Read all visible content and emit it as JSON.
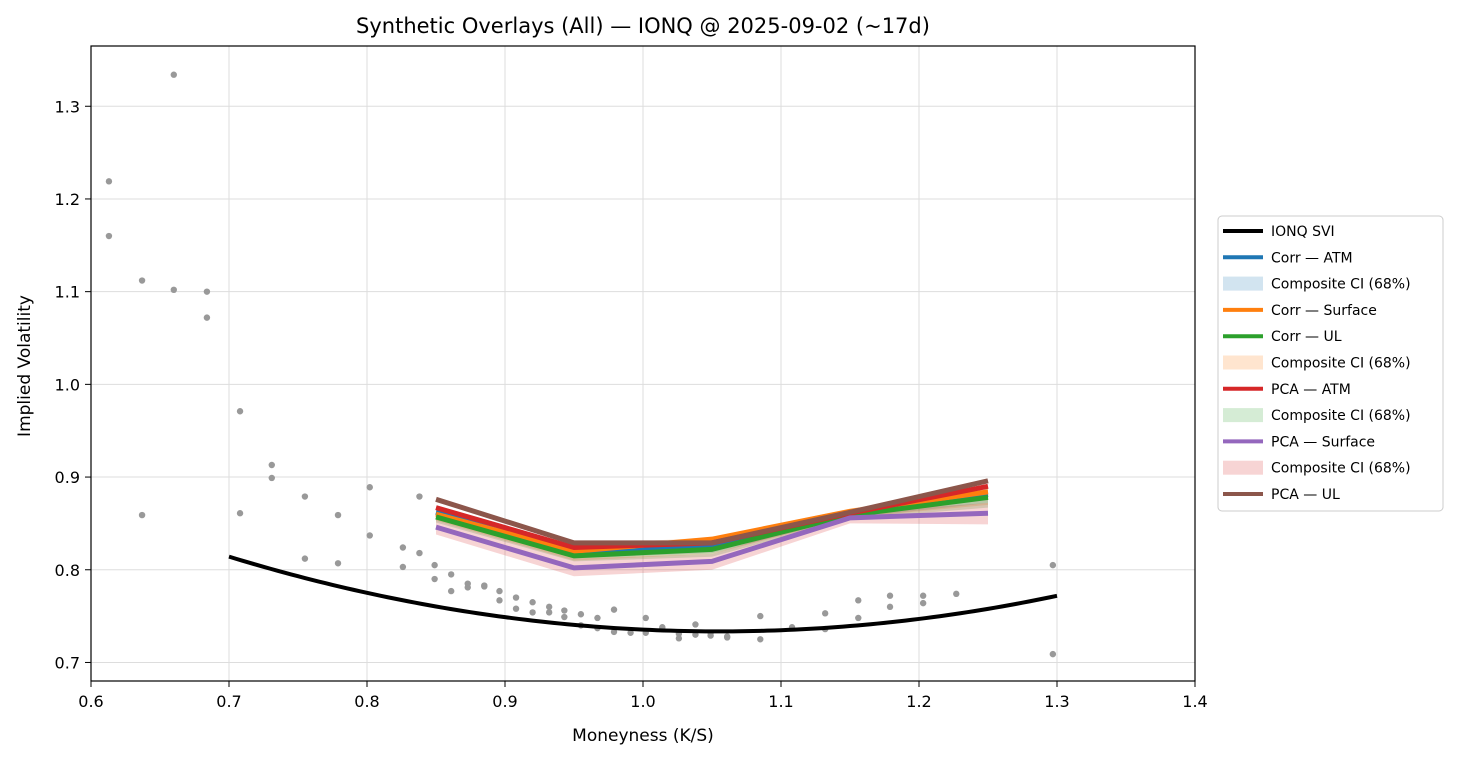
{
  "chart_data": {
    "type": "line",
    "title": "Synthetic Overlays (All) — IONQ @ 2025-09-02 (~17d)",
    "xlabel": "Moneyness (K/S)",
    "ylabel": "Implied Volatility",
    "xlim": [
      0.6,
      1.4
    ],
    "ylim": [
      0.68,
      1.365
    ],
    "xticks": [
      0.6,
      0.7,
      0.8,
      0.9,
      1.0,
      1.1,
      1.2,
      1.3,
      1.4
    ],
    "xtick_labels": [
      "0.6",
      "0.7",
      "0.8",
      "0.9",
      "1.0",
      "1.1",
      "1.2",
      "1.3",
      "1.4"
    ],
    "yticks": [
      0.7,
      0.8,
      0.9,
      1.0,
      1.1,
      1.2,
      1.3
    ],
    "ytick_labels": [
      "0.7",
      "0.8",
      "0.9",
      "1.0",
      "1.1",
      "1.2",
      "1.3"
    ],
    "grid": true,
    "legend_position": "right, outside plot",
    "scatter": {
      "color": "#999999",
      "points": [
        [
          0.613,
          1.219
        ],
        [
          0.613,
          1.16
        ],
        [
          0.637,
          1.112
        ],
        [
          0.637,
          0.859
        ],
        [
          0.66,
          1.334
        ],
        [
          0.66,
          1.102
        ],
        [
          0.684,
          1.1
        ],
        [
          0.684,
          1.072
        ],
        [
          0.708,
          0.971
        ],
        [
          0.708,
          0.861
        ],
        [
          0.731,
          0.913
        ],
        [
          0.731,
          0.899
        ],
        [
          0.755,
          0.879
        ],
        [
          0.755,
          0.812
        ],
        [
          0.779,
          0.859
        ],
        [
          0.779,
          0.807
        ],
        [
          0.802,
          0.889
        ],
        [
          0.802,
          0.837
        ],
        [
          0.826,
          0.824
        ],
        [
          0.826,
          0.803
        ],
        [
          0.838,
          0.879
        ],
        [
          0.838,
          0.818
        ],
        [
          0.849,
          0.805
        ],
        [
          0.849,
          0.79
        ],
        [
          0.861,
          0.795
        ],
        [
          0.861,
          0.777
        ],
        [
          0.873,
          0.785
        ],
        [
          0.873,
          0.781
        ],
        [
          0.885,
          0.783
        ],
        [
          0.885,
          0.782
        ],
        [
          0.896,
          0.777
        ],
        [
          0.896,
          0.767
        ],
        [
          0.908,
          0.77
        ],
        [
          0.908,
          0.758
        ],
        [
          0.92,
          0.765
        ],
        [
          0.92,
          0.754
        ],
        [
          0.932,
          0.76
        ],
        [
          0.932,
          0.754
        ],
        [
          0.943,
          0.756
        ],
        [
          0.943,
          0.749
        ],
        [
          0.955,
          0.752
        ],
        [
          0.955,
          0.74
        ],
        [
          0.967,
          0.748
        ],
        [
          0.967,
          0.737
        ],
        [
          0.979,
          0.757
        ],
        [
          0.979,
          0.733
        ],
        [
          0.991,
          0.732
        ],
        [
          1.002,
          0.748
        ],
        [
          1.002,
          0.732
        ],
        [
          1.014,
          0.738
        ],
        [
          1.014,
          0.736
        ],
        [
          1.026,
          0.731
        ],
        [
          1.026,
          0.726
        ],
        [
          1.038,
          0.741
        ],
        [
          1.038,
          0.73
        ],
        [
          1.049,
          0.732
        ],
        [
          1.049,
          0.729
        ],
        [
          1.061,
          0.728
        ],
        [
          1.061,
          0.727
        ],
        [
          1.085,
          0.75
        ],
        [
          1.085,
          0.725
        ],
        [
          1.108,
          0.738
        ],
        [
          1.132,
          0.753
        ],
        [
          1.132,
          0.736
        ],
        [
          1.156,
          0.767
        ],
        [
          1.156,
          0.748
        ],
        [
          1.179,
          0.772
        ],
        [
          1.179,
          0.76
        ],
        [
          1.203,
          0.772
        ],
        [
          1.203,
          0.764
        ],
        [
          1.227,
          0.774
        ],
        [
          1.297,
          0.805
        ],
        [
          1.297,
          0.709
        ]
      ]
    },
    "series": [
      {
        "name": "IONQ SVI",
        "color": "#000000",
        "kind": "svi",
        "params": {
          "a": 0.7335,
          "b": 0.64,
          "m": 1.055,
          "k_lo": 0.7,
          "k_hi": 1.3
        }
      },
      {
        "name": "Corr — ATM",
        "color": "#1f77b4",
        "x": [
          0.85,
          0.95,
          1.05,
          1.15,
          1.25
        ],
        "y": [
          0.862,
          0.818,
          0.826,
          0.86,
          0.881
        ]
      },
      {
        "name": "Corr — Surface",
        "color": "#ff7f0e",
        "x": [
          0.85,
          0.95,
          1.05,
          1.15,
          1.25
        ],
        "y": [
          0.86,
          0.82,
          0.833,
          0.863,
          0.884
        ]
      },
      {
        "name": "Corr — UL",
        "color": "#2ca02c",
        "x": [
          0.85,
          0.95,
          1.05,
          1.15,
          1.25
        ],
        "y": [
          0.857,
          0.815,
          0.822,
          0.859,
          0.878
        ]
      },
      {
        "name": "PCA — ATM",
        "color": "#d62728",
        "x": [
          0.85,
          0.95,
          1.05,
          1.15,
          1.25
        ],
        "y": [
          0.867,
          0.824,
          0.829,
          0.861,
          0.89
        ]
      },
      {
        "name": "PCA — Surface",
        "color": "#9467bd",
        "x": [
          0.85,
          0.95,
          1.05,
          1.15,
          1.25
        ],
        "y": [
          0.846,
          0.802,
          0.809,
          0.856,
          0.861
        ]
      },
      {
        "name": "PCA — UL",
        "color": "#8c564b",
        "x": [
          0.85,
          0.95,
          1.05,
          1.15,
          1.25
        ],
        "y": [
          0.876,
          0.829,
          0.829,
          0.862,
          0.896
        ]
      }
    ],
    "bands": [
      {
        "name": "Composite CI (68%)",
        "color": "#1f77b4",
        "alpha": 0.2,
        "x": [
          0.85,
          0.95,
          1.05,
          1.15,
          1.25
        ],
        "lo": [
          0.856,
          0.812,
          0.818,
          0.856,
          0.872
        ],
        "hi": [
          0.868,
          0.824,
          0.833,
          0.864,
          0.89
        ]
      },
      {
        "name": "Composite CI (68%)",
        "color": "#ff7f0e",
        "alpha": 0.2,
        "x": [
          0.85,
          0.95,
          1.05,
          1.15,
          1.25
        ],
        "lo": [
          0.853,
          0.81,
          0.817,
          0.856,
          0.87
        ],
        "hi": [
          0.868,
          0.827,
          0.835,
          0.866,
          0.89
        ]
      },
      {
        "name": "Composite CI (68%)",
        "color": "#2ca02c",
        "alpha": 0.2,
        "x": [
          0.85,
          0.95,
          1.05,
          1.15,
          1.25
        ],
        "lo": [
          0.851,
          0.809,
          0.814,
          0.855,
          0.867
        ],
        "hi": [
          0.864,
          0.822,
          0.829,
          0.864,
          0.886
        ]
      },
      {
        "name": "Composite CI (68%)",
        "color": "#d62728",
        "alpha": 0.2,
        "x": [
          0.85,
          0.95,
          1.05,
          1.15,
          1.25
        ],
        "lo": [
          0.838,
          0.793,
          0.8,
          0.85,
          0.849
        ],
        "hi": [
          0.856,
          0.812,
          0.817,
          0.862,
          0.872
        ]
      }
    ],
    "legend": [
      {
        "label": "IONQ SVI",
        "color": "#000000",
        "kind": "line"
      },
      {
        "label": "Corr — ATM",
        "color": "#1f77b4",
        "kind": "line"
      },
      {
        "label": "Composite CI (68%)",
        "color": "#1f77b4",
        "kind": "patch"
      },
      {
        "label": "Corr — Surface",
        "color": "#ff7f0e",
        "kind": "line"
      },
      {
        "label": "Corr — UL",
        "color": "#2ca02c",
        "kind": "line"
      },
      {
        "label": "Composite CI (68%)",
        "color": "#ff7f0e",
        "kind": "patch"
      },
      {
        "label": "PCA — ATM",
        "color": "#d62728",
        "kind": "line"
      },
      {
        "label": "Composite CI (68%)",
        "color": "#2ca02c",
        "kind": "patch"
      },
      {
        "label": "PCA — Surface",
        "color": "#9467bd",
        "kind": "line"
      },
      {
        "label": "Composite CI (68%)",
        "color": "#d62728",
        "kind": "patch"
      },
      {
        "label": "PCA — UL",
        "color": "#8c564b",
        "kind": "line"
      }
    ]
  }
}
